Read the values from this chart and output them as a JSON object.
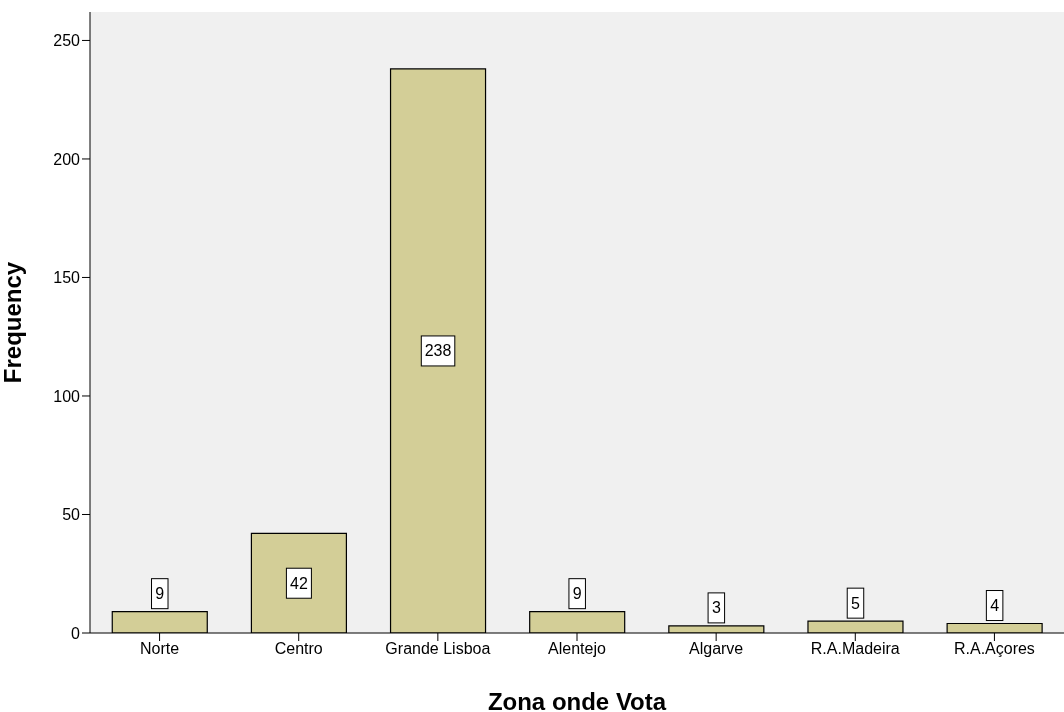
{
  "chart_data": {
    "type": "bar",
    "xlabel": "Zona onde Vota",
    "ylabel": "Frequency",
    "categories": [
      "Norte",
      "Centro",
      "Grande Lisboa",
      "Alentejo",
      "Algarve",
      "R.A.Madeira",
      "R.A.Açores"
    ],
    "values": [
      9,
      42,
      238,
      9,
      3,
      5,
      4
    ],
    "color": "#d3ce97",
    "ylim": [
      0,
      262
    ],
    "yticks": [
      0,
      50,
      100,
      150,
      200,
      250
    ],
    "grid": false,
    "data_labels": true
  }
}
